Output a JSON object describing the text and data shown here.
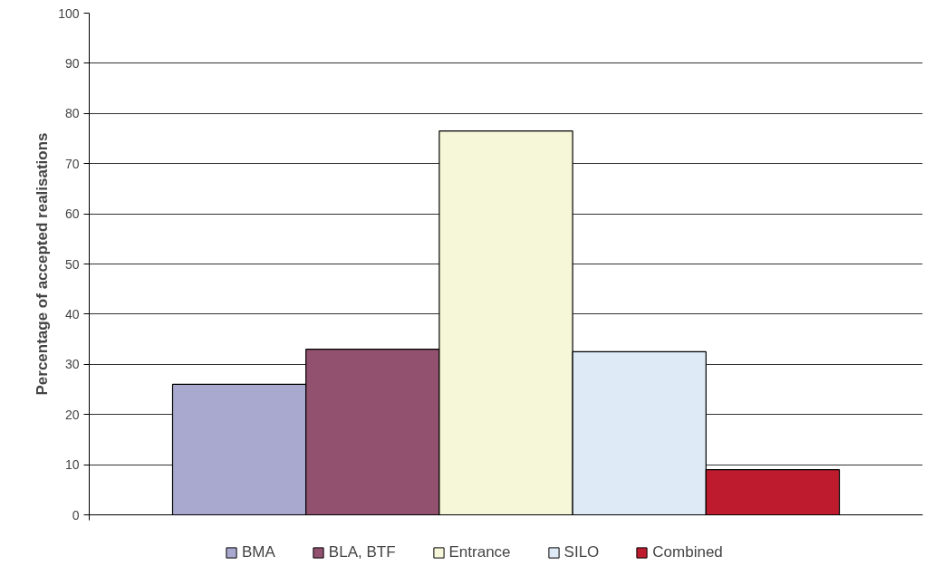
{
  "chart_data": {
    "type": "bar",
    "ylabel": "Percentage of accepted realisations",
    "categories": [
      null
    ],
    "series": [
      {
        "name": "BMA",
        "color": "#a9a9d0",
        "values": [
          26
        ]
      },
      {
        "name": "BLA, BTF",
        "color": "#92526f",
        "values": [
          33
        ]
      },
      {
        "name": "Entrance",
        "color": "#f6f6d8",
        "values": [
          76.5
        ]
      },
      {
        "name": "SILO",
        "color": "#deeaf5",
        "values": [
          32.5
        ]
      },
      {
        "name": "Combined",
        "color": "#be1c2e",
        "values": [
          9
        ]
      }
    ],
    "ylim": [
      0,
      100
    ],
    "yticks": [
      0,
      10,
      20,
      30,
      40,
      50,
      60,
      70,
      80,
      90,
      100
    ],
    "grid": "y",
    "legend": "bottom"
  }
}
